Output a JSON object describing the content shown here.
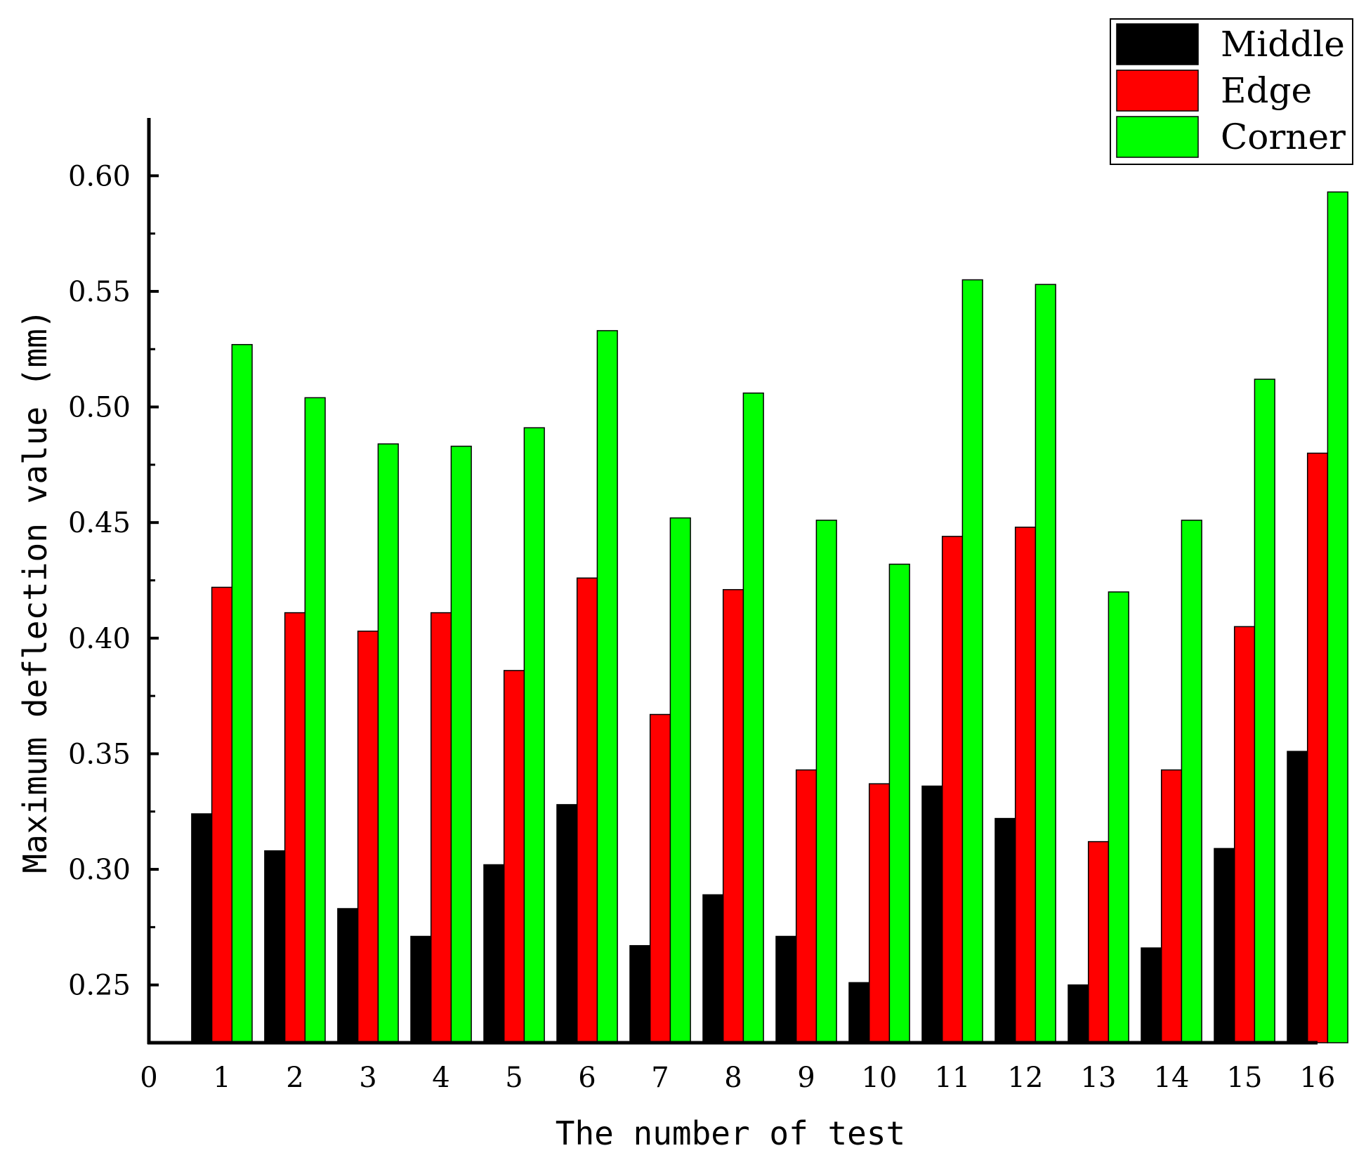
{
  "chart_data": {
    "type": "bar",
    "xlabel": "The number of test",
    "ylabel": "Maximum deflection value (mm)",
    "x_ticks": [
      "0",
      "1",
      "2",
      "3",
      "4",
      "5",
      "6",
      "7",
      "8",
      "9",
      "10",
      "11",
      "12",
      "13",
      "14",
      "15",
      "16"
    ],
    "categories": [
      "1",
      "2",
      "3",
      "4",
      "5",
      "6",
      "7",
      "8",
      "9",
      "10",
      "11",
      "12",
      "13",
      "14",
      "15",
      "16"
    ],
    "y_ticks": [
      "0.25",
      "0.30",
      "0.35",
      "0.40",
      "0.45",
      "0.50",
      "0.55",
      "0.60"
    ],
    "ylim": [
      0.225,
      0.625
    ],
    "grid": false,
    "legend_position": "top-right",
    "series": [
      {
        "name": "Middle",
        "color": "#000000",
        "values": [
          0.324,
          0.308,
          0.283,
          0.271,
          0.302,
          0.328,
          0.267,
          0.289,
          0.271,
          0.251,
          0.336,
          0.322,
          0.25,
          0.266,
          0.309,
          0.351
        ]
      },
      {
        "name": "Edge",
        "color": "#ff0000",
        "values": [
          0.422,
          0.411,
          0.403,
          0.411,
          0.386,
          0.426,
          0.367,
          0.421,
          0.343,
          0.337,
          0.444,
          0.448,
          0.312,
          0.343,
          0.405,
          0.48
        ]
      },
      {
        "name": "Corner",
        "color": "#00ff00",
        "values": [
          0.527,
          0.504,
          0.484,
          0.483,
          0.491,
          0.533,
          0.452,
          0.506,
          0.451,
          0.432,
          0.555,
          0.553,
          0.42,
          0.451,
          0.512,
          0.593
        ]
      }
    ]
  }
}
